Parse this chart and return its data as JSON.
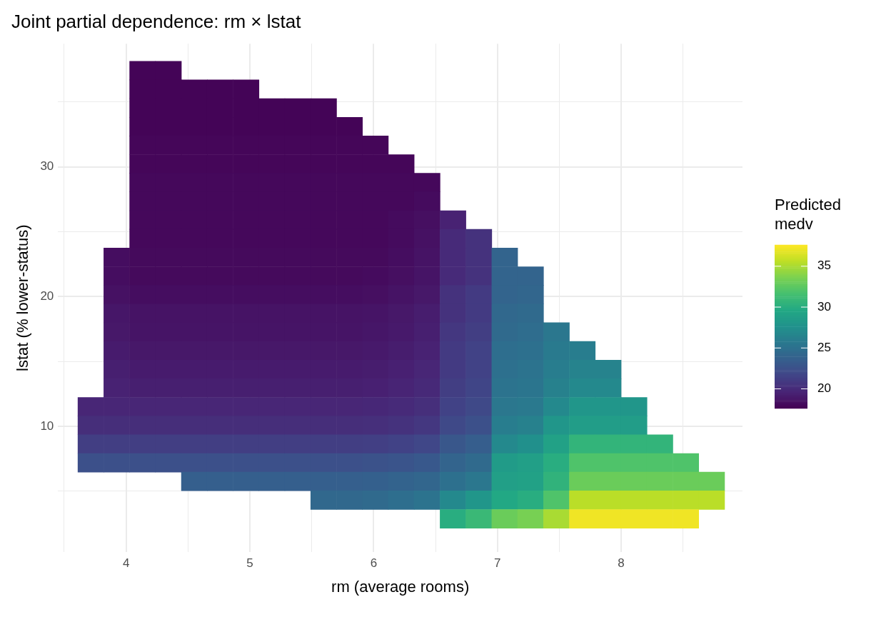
{
  "chart_data": {
    "type": "heatmap",
    "title": "Joint partial dependence: rm × lstat",
    "xlabel": "rm (average rooms)",
    "ylabel": "lstat (% lower-status)",
    "legend_title": "Predicted medv",
    "x": [
      3.715,
      3.924,
      4.133,
      4.342,
      4.551,
      4.76,
      4.969,
      5.178,
      5.387,
      5.596,
      5.805,
      6.014,
      6.223,
      6.432,
      6.641,
      6.85,
      7.059,
      7.268,
      7.477,
      7.686,
      7.895,
      8.104,
      8.313,
      8.522,
      8.731
    ],
    "y": [
      37.43,
      35.99,
      34.55,
      33.11,
      31.67,
      30.23,
      28.79,
      27.35,
      25.91,
      24.47,
      23.03,
      21.59,
      20.15,
      18.71,
      17.27,
      15.83,
      14.39,
      12.95,
      11.51,
      10.07,
      8.63,
      7.19,
      5.75,
      4.31,
      2.87
    ],
    "cells": [
      [
        null,
        null,
        17.8,
        17.8,
        null,
        null,
        null,
        null,
        null,
        null,
        null,
        null,
        null,
        null,
        null,
        null,
        null,
        null,
        null,
        null,
        null,
        null,
        null,
        null,
        null
      ],
      [
        null,
        null,
        17.8,
        17.8,
        17.8,
        17.8,
        17.8,
        null,
        null,
        null,
        null,
        null,
        null,
        null,
        null,
        null,
        null,
        null,
        null,
        null,
        null,
        null,
        null,
        null,
        null
      ],
      [
        null,
        null,
        17.8,
        17.8,
        17.8,
        17.8,
        17.8,
        17.8,
        17.8,
        17.8,
        null,
        null,
        null,
        null,
        null,
        null,
        null,
        null,
        null,
        null,
        null,
        null,
        null,
        null,
        null
      ],
      [
        null,
        null,
        17.8,
        17.8,
        17.8,
        17.8,
        17.8,
        17.8,
        17.8,
        17.8,
        17.8,
        null,
        null,
        null,
        null,
        null,
        null,
        null,
        null,
        null,
        null,
        null,
        null,
        null,
        null
      ],
      [
        null,
        null,
        17.9,
        17.9,
        17.9,
        17.9,
        17.9,
        17.9,
        17.9,
        17.9,
        17.9,
        17.9,
        null,
        null,
        null,
        null,
        null,
        null,
        null,
        null,
        null,
        null,
        null,
        null,
        null
      ],
      [
        null,
        null,
        17.9,
        17.9,
        17.9,
        17.9,
        17.9,
        17.9,
        17.9,
        17.9,
        17.9,
        17.9,
        17.9,
        null,
        null,
        null,
        null,
        null,
        null,
        null,
        null,
        null,
        null,
        null,
        null
      ],
      [
        null,
        null,
        18.0,
        18.0,
        18.0,
        18.0,
        18.0,
        18.0,
        18.0,
        18.0,
        18.0,
        18.0,
        18.0,
        18.0,
        null,
        null,
        null,
        null,
        null,
        null,
        null,
        null,
        null,
        null,
        null
      ],
      [
        null,
        null,
        18.0,
        18.0,
        18.0,
        18.0,
        18.0,
        18.0,
        18.0,
        18.0,
        18.0,
        18.0,
        18.0,
        18.2,
        null,
        null,
        null,
        null,
        null,
        null,
        null,
        null,
        null,
        null,
        null
      ],
      [
        null,
        null,
        18.0,
        18.0,
        18.0,
        18.0,
        18.0,
        18.0,
        18.0,
        18.0,
        18.0,
        18.0,
        18.2,
        18.4,
        19.5,
        null,
        null,
        null,
        null,
        null,
        null,
        null,
        null,
        null,
        null
      ],
      [
        null,
        null,
        18.0,
        18.0,
        18.0,
        18.0,
        18.0,
        18.0,
        18.0,
        18.0,
        18.0,
        18.0,
        18.2,
        18.5,
        20,
        20.5,
        null,
        null,
        null,
        null,
        null,
        null,
        null,
        null,
        null
      ],
      [
        null,
        18.3,
        18.1,
        18.1,
        18.1,
        18.1,
        18.1,
        18.1,
        18.1,
        18.1,
        18.1,
        18.1,
        18.3,
        18.6,
        20,
        20.5,
        24,
        null,
        null,
        null,
        null,
        null,
        null,
        null,
        null
      ],
      [
        null,
        18.3,
        18.1,
        18.1,
        18.1,
        18.1,
        18.1,
        18.1,
        18.1,
        18.1,
        18.1,
        18.2,
        18.4,
        18.7,
        20,
        20.5,
        24,
        24,
        null,
        null,
        null,
        null,
        null,
        null,
        null
      ],
      [
        null,
        18.5,
        18.3,
        18.3,
        18.3,
        18.3,
        18.3,
        18.3,
        18.3,
        18.3,
        18.3,
        18.4,
        18.6,
        18.9,
        20.5,
        21,
        24,
        24.2,
        null,
        null,
        null,
        null,
        null,
        null,
        null
      ],
      [
        null,
        18.8,
        18.6,
        18.6,
        18.6,
        18.6,
        18.6,
        18.6,
        18.6,
        18.6,
        18.6,
        18.7,
        18.9,
        19.2,
        20.5,
        21,
        24.3,
        24.5,
        null,
        null,
        null,
        null,
        null,
        null,
        null
      ],
      [
        null,
        18.9,
        18.7,
        18.7,
        18.7,
        18.7,
        18.7,
        18.7,
        18.7,
        18.7,
        18.7,
        18.8,
        19.0,
        19.3,
        20.8,
        21.2,
        24.5,
        24.7,
        25.5,
        null,
        null,
        null,
        null,
        null,
        null
      ],
      [
        null,
        19.1,
        18.9,
        18.9,
        18.9,
        18.9,
        18.9,
        18.9,
        18.9,
        18.9,
        18.9,
        19.0,
        19.2,
        19.5,
        21,
        21.5,
        24.8,
        25,
        25.8,
        26,
        null,
        null,
        null,
        null,
        null
      ],
      [
        null,
        19.3,
        19.1,
        19.1,
        19.1,
        19.1,
        19.1,
        19.1,
        19.1,
        19.1,
        19.1,
        19.2,
        19.4,
        19.7,
        21,
        21.5,
        25,
        25.2,
        26,
        26.5,
        26.5,
        null,
        null,
        null,
        null
      ],
      [
        null,
        19.5,
        19.3,
        19.3,
        19.3,
        19.3,
        19.3,
        19.3,
        19.3,
        19.3,
        19.3,
        19.4,
        19.6,
        19.9,
        21.2,
        21.7,
        25.2,
        25.4,
        26.3,
        27,
        27,
        null,
        null,
        null,
        null
      ],
      [
        19.7,
        19.7,
        19.7,
        19.7,
        19.7,
        19.7,
        19.7,
        19.7,
        19.7,
        19.7,
        19.7,
        19.8,
        20,
        20.3,
        21.5,
        22,
        25.5,
        25.7,
        27,
        28,
        28,
        28,
        null,
        null,
        null
      ],
      [
        20.2,
        20.2,
        20.2,
        20.2,
        20.2,
        20.2,
        20.2,
        20.2,
        20.2,
        20.2,
        20.2,
        20.3,
        20.5,
        20.8,
        22,
        22.5,
        26,
        26.3,
        28,
        28.6,
        28.6,
        28.6,
        null,
        null,
        null
      ],
      [
        21.2,
        21.2,
        21.2,
        21.2,
        21.2,
        21.2,
        21.2,
        21.2,
        21.2,
        21.2,
        21.2,
        21.3,
        21.5,
        21.8,
        23,
        23.5,
        27,
        27.5,
        29,
        30.6,
        30.6,
        30.6,
        30.6,
        null,
        null
      ],
      [
        22.5,
        22.5,
        22.5,
        22.5,
        22.5,
        22.5,
        22.5,
        22.5,
        22.5,
        22.5,
        22.5,
        22.6,
        22.8,
        23.1,
        24,
        24.5,
        28.5,
        28.8,
        30,
        32,
        32,
        32,
        32,
        32,
        null
      ],
      [
        null,
        null,
        null,
        null,
        23.6,
        23.6,
        23.6,
        23.6,
        23.6,
        23.6,
        23.6,
        23.7,
        23.9,
        24.2,
        25,
        25.5,
        28.8,
        29,
        30.5,
        33,
        33,
        33,
        33,
        33,
        33
      ],
      [
        null,
        null,
        null,
        null,
        null,
        null,
        null,
        null,
        null,
        24.3,
        24.3,
        24.5,
        24.8,
        25.2,
        27,
        28,
        29.6,
        30,
        32,
        35.5,
        35.5,
        35.5,
        35.5,
        35.5,
        35.5
      ],
      [
        null,
        null,
        null,
        null,
        null,
        null,
        null,
        null,
        null,
        null,
        null,
        null,
        null,
        null,
        30,
        31,
        33,
        33.5,
        35,
        37.2,
        37.2,
        37.2,
        37.2,
        37.2,
        null
      ]
    ],
    "clim": [
      17.6,
      37.6
    ],
    "cticks": [
      20,
      25,
      30,
      35
    ],
    "xlim": [
      3.45,
      8.98
    ],
    "xticks": [
      {
        "value": 3.5,
        "label": null
      },
      4,
      {
        "value": 4.5,
        "label": null
      },
      5,
      {
        "value": 5.5,
        "label": null
      },
      6,
      {
        "value": 6.5,
        "label": null
      },
      7,
      {
        "value": 7.5,
        "label": null
      },
      8,
      {
        "value": 8.5,
        "label": null
      }
    ],
    "ylim": [
      0.3,
      39.5
    ],
    "yticks": [
      {
        "value": 5,
        "label": null
      },
      10,
      {
        "value": 15,
        "label": null
      },
      20,
      {
        "value": 25,
        "label": null
      },
      30,
      {
        "value": 35,
        "label": null
      }
    ],
    "grid": true
  }
}
